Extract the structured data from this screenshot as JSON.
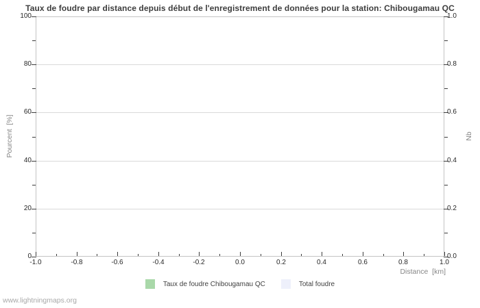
{
  "chart_data": {
    "type": "bar",
    "title": "Taux de foudre par distance depuis début de l'enregistrement de données pour la station: Chibougamau QC",
    "xlabel": "Distance  [km]",
    "ylabel_left": "Pourcent  [%]",
    "ylabel_right": "Nb",
    "xlim": [
      -1.0,
      1.0
    ],
    "ylim_left": [
      0,
      100
    ],
    "ylim_right": [
      0.0,
      1.0
    ],
    "x_ticks": [
      -1.0,
      -0.8,
      -0.6,
      -0.4,
      -0.2,
      0.0,
      0.2,
      0.4,
      0.6,
      0.8,
      1.0
    ],
    "x_tick_labels": [
      "-1.0",
      "-0.8",
      "-0.6",
      "-0.4",
      "-0.2",
      "0.0",
      "0.2",
      "0.4",
      "0.6",
      "0.8",
      "1.0"
    ],
    "y_ticks_left": [
      0,
      20,
      40,
      60,
      80,
      100
    ],
    "y_tick_labels_left": [
      "0",
      "20",
      "40",
      "60",
      "80",
      "100"
    ],
    "y_ticks_right": [
      0.0,
      0.2,
      0.4,
      0.6,
      0.8,
      1.0
    ],
    "y_tick_labels_right": [
      "0.0",
      "0.2",
      "0.4",
      "0.6",
      "0.8",
      "1.0"
    ],
    "grid": "horizontal-major-only",
    "legend_position": "bottom-center",
    "x": [],
    "series": [
      {
        "name": "Taux de foudre Chibougamau QC",
        "color": "#a9d8a9",
        "axis": "left",
        "values": []
      },
      {
        "name": "Total foudre",
        "color": "#eef0fb",
        "axis": "right",
        "values": []
      }
    ],
    "note": "no data plotted - chart area is empty"
  },
  "footer": {
    "text": "www.lightningmaps.org"
  }
}
